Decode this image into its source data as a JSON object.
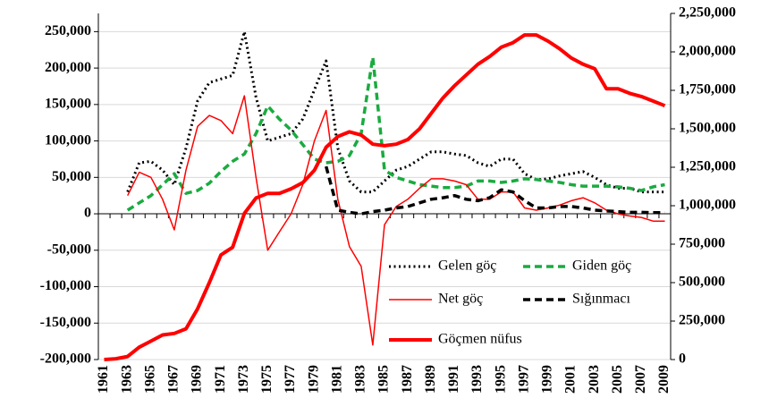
{
  "chart_data": {
    "type": "line",
    "categories": [
      "1961",
      null,
      "1963",
      null,
      "1965",
      null,
      "1967",
      null,
      "1969",
      null,
      "1971",
      null,
      "1973",
      null,
      "1975",
      null,
      "1977",
      null,
      "1979",
      null,
      "1981",
      null,
      "1983",
      null,
      "1985",
      null,
      "1987",
      null,
      "1989",
      null,
      "1991",
      null,
      "1993",
      null,
      "1995",
      null,
      "1997",
      null,
      "1999",
      null,
      "2001",
      null,
      "2003",
      null,
      "2005",
      null,
      "2007",
      null,
      "2009"
    ],
    "ylim": [
      -200000,
      275000
    ],
    "yticks": [
      {
        "value": -200000,
        "label": "-200,000"
      },
      {
        "value": -150000,
        "label": "-150,000"
      },
      {
        "value": -100000,
        "label": "-100,000"
      },
      {
        "value": -50000,
        "label": "-50,000"
      },
      0,
      {
        "value": 50000,
        "label": "50,000"
      },
      {
        "value": 100000,
        "label": "100,000"
      },
      {
        "value": 150000,
        "label": "150,000"
      },
      {
        "value": 200000,
        "label": "200,000"
      },
      {
        "value": 250000,
        "label": "250,000"
      }
    ],
    "y2lim": [
      0,
      2250000
    ],
    "y2ticks": [
      0,
      {
        "value": 250000,
        "label": "250,000"
      },
      {
        "value": 500000,
        "label": "500,000"
      },
      {
        "value": 750000,
        "label": "750,000"
      },
      {
        "value": 1000000,
        "label": "1,000,000"
      },
      {
        "value": 1250000,
        "label": "1,250,000"
      },
      {
        "value": 1500000,
        "label": "1,500,000"
      },
      {
        "value": 1750000,
        "label": "1,750,000"
      },
      {
        "value": 2000000,
        "label": "2,000,000"
      },
      {
        "value": 2250000,
        "label": "2,250,000"
      }
    ],
    "grid": true,
    "series": [
      {
        "name": "Gelen göç",
        "color": "#000000",
        "style": "dotted",
        "width": 3,
        "values": [
          null,
          null,
          30000,
          70000,
          72000,
          60000,
          40000,
          90000,
          155000,
          180000,
          185000,
          190000,
          250000,
          160000,
          100000,
          105000,
          110000,
          130000,
          170000,
          210000,
          90000,
          45000,
          30000,
          30000,
          45000,
          60000,
          65000,
          75000,
          85000,
          85000,
          82000,
          80000,
          70000,
          65000,
          75000,
          75000,
          55000,
          47000,
          48000,
          52000,
          55000,
          58000,
          50000,
          40000,
          35000,
          35000,
          30000,
          30000,
          30000
        ]
      },
      {
        "name": "Giden göç",
        "color": "#1aab40",
        "style": "dashed",
        "width": 3.5,
        "values": [
          null,
          null,
          5000,
          15000,
          25000,
          40000,
          55000,
          28000,
          32000,
          42000,
          58000,
          72000,
          82000,
          110000,
          148000,
          130000,
          115000,
          95000,
          75000,
          70000,
          72000,
          80000,
          110000,
          215000,
          60000,
          50000,
          45000,
          40000,
          38000,
          36000,
          36000,
          38000,
          45000,
          45000,
          43000,
          45000,
          48000,
          47000,
          45000,
          43000,
          40000,
          38000,
          38000,
          38000,
          37000,
          35000,
          32000,
          37000,
          40000
        ]
      },
      {
        "name": "Net göç",
        "color": "#ff0000",
        "style": "solid",
        "width": 1.5,
        "values": [
          null,
          null,
          25000,
          57000,
          50000,
          20000,
          -22000,
          60000,
          120000,
          135000,
          128000,
          110000,
          162000,
          50000,
          -50000,
          -25000,
          0,
          40000,
          100000,
          142000,
          20000,
          -45000,
          -72000,
          -180000,
          -15000,
          10000,
          20000,
          35000,
          48000,
          48000,
          45000,
          40000,
          20000,
          20000,
          30000,
          30000,
          8000,
          5000,
          8000,
          12000,
          18000,
          22000,
          15000,
          5000,
          0,
          -3000,
          -5000,
          -10000,
          -10000
        ]
      },
      {
        "name": "Sığınmacı",
        "color": "#000000",
        "style": "dashed",
        "width": 3.5,
        "values": [
          null,
          null,
          null,
          null,
          null,
          null,
          null,
          null,
          null,
          null,
          null,
          null,
          null,
          null,
          null,
          null,
          null,
          null,
          null,
          65000,
          5000,
          2000,
          0,
          3000,
          5000,
          8000,
          10000,
          15000,
          20000,
          22000,
          25000,
          20000,
          18000,
          22000,
          33000,
          30000,
          18000,
          8000,
          8000,
          10000,
          10000,
          8000,
          5000,
          4000,
          3000,
          2000,
          2000,
          1500,
          1500
        ]
      },
      {
        "name": "Göçmen nüfus",
        "color": "#ff0000",
        "style": "solid",
        "width": 4,
        "axis": "y2",
        "values": [
          0,
          5000,
          20000,
          80000,
          120000,
          160000,
          170000,
          200000,
          330000,
          500000,
          680000,
          730000,
          950000,
          1050000,
          1080000,
          1080000,
          1110000,
          1150000,
          1230000,
          1380000,
          1450000,
          1480000,
          1460000,
          1400000,
          1390000,
          1400000,
          1430000,
          1500000,
          1600000,
          1700000,
          1780000,
          1850000,
          1920000,
          1970000,
          2030000,
          2060000,
          2110000,
          2110000,
          2070000,
          2020000,
          1960000,
          1920000,
          1890000,
          1760000,
          1760000,
          1730000,
          1710000,
          1680000,
          1650000
        ]
      }
    ]
  }
}
